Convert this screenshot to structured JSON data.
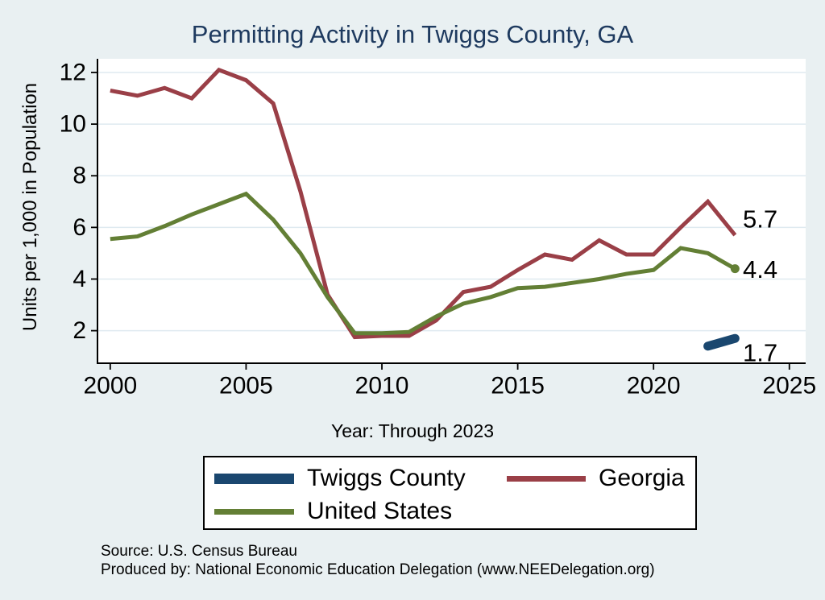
{
  "page": {
    "background": "#e9f0f2",
    "plot_background": "#ffffff",
    "gridline_color": "#dfeaf0"
  },
  "chart_data": {
    "type": "line",
    "title": "Permitting Activity in Twiggs County, GA",
    "title_color": "#1e3a5f",
    "ylabel": "Units per 1,000 in Population",
    "xlabel": "Year: Through 2023",
    "x_ticks": [
      2000,
      2005,
      2010,
      2015,
      2020,
      2025
    ],
    "y_ticks": [
      2,
      4,
      6,
      8,
      10,
      12
    ],
    "xlim": [
      1999.53,
      2025.6
    ],
    "ylim": [
      0.74,
      12.53
    ],
    "grid": true,
    "legend_position": "bottom",
    "series": [
      {
        "name": "Twiggs County",
        "color": "#1a476f",
        "line_width": 11,
        "x": [
          2022,
          2023
        ],
        "values": [
          1.4,
          1.7
        ],
        "end_label": "1.7",
        "end_marker": false
      },
      {
        "name": "Georgia",
        "color": "#9a3f47",
        "line_width": 5,
        "x": [
          2000,
          2001,
          2002,
          2003,
          2004,
          2005,
          2006,
          2007,
          2008,
          2009,
          2010,
          2011,
          2012,
          2013,
          2014,
          2015,
          2016,
          2017,
          2018,
          2019,
          2020,
          2021,
          2022,
          2023
        ],
        "values": [
          11.3,
          11.1,
          11.4,
          11.0,
          12.1,
          11.7,
          10.8,
          7.4,
          3.4,
          1.75,
          1.8,
          1.8,
          2.4,
          3.5,
          3.7,
          4.35,
          4.95,
          4.75,
          5.5,
          4.95,
          4.95,
          6.0,
          7.0,
          5.7
        ],
        "end_label": "5.7",
        "end_marker": false
      },
      {
        "name": "United States",
        "color": "#637f35",
        "line_width": 5,
        "x": [
          2000,
          2001,
          2002,
          2003,
          2004,
          2005,
          2006,
          2007,
          2008,
          2009,
          2010,
          2011,
          2012,
          2013,
          2014,
          2015,
          2016,
          2017,
          2018,
          2019,
          2020,
          2021,
          2022,
          2023
        ],
        "values": [
          5.55,
          5.65,
          6.05,
          6.5,
          6.9,
          7.3,
          6.3,
          5.0,
          3.3,
          1.9,
          1.9,
          1.95,
          2.55,
          3.05,
          3.3,
          3.65,
          3.7,
          3.85,
          4.0,
          4.2,
          4.35,
          5.2,
          5.0,
          4.4
        ],
        "end_label": "4.4",
        "end_marker": true
      }
    ]
  },
  "notes": {
    "source": "Source: U.S. Census Bureau",
    "produced_by": "Produced by: National Economic Education Delegation (www.NEEDelegation.org)"
  }
}
